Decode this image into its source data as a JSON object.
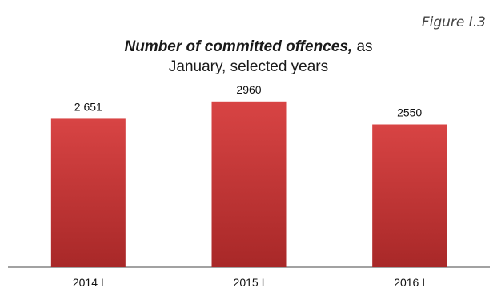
{
  "figure_label": "Figure I.3",
  "title": {
    "bold": "Number of committed offences,",
    "rest": " as",
    "line2": "January, selected years"
  },
  "colors": {
    "bar_top": "#d84444",
    "bar_bottom": "#a82828",
    "axis": "#444444"
  },
  "chart_data": {
    "type": "bar",
    "title": "Number of committed offences, as January, selected years",
    "categories": [
      "2014 I",
      "2015 I",
      "2016  I"
    ],
    "values": [
      2651,
      2960,
      2550
    ],
    "data_labels": [
      "2 651",
      "2960",
      "2550"
    ],
    "xlabel": "",
    "ylabel": "",
    "ylim": [
      0,
      3200
    ],
    "grid": false,
    "legend": "none"
  }
}
